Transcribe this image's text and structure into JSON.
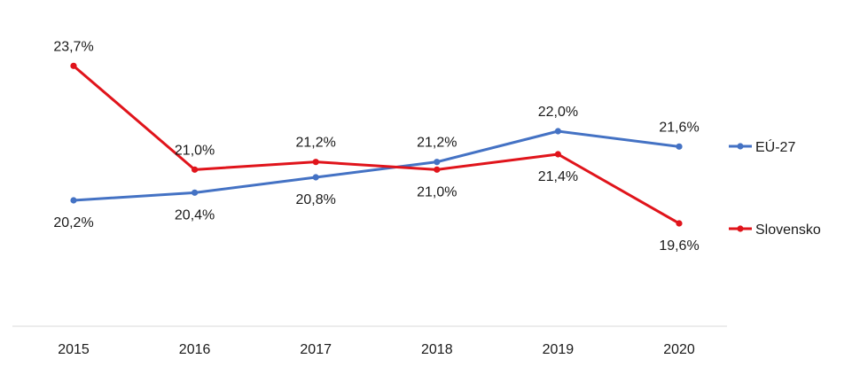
{
  "chart_data": {
    "type": "line",
    "title": "",
    "xlabel": "",
    "ylabel": "",
    "categories": [
      "2015",
      "2016",
      "2017",
      "2018",
      "2019",
      "2020"
    ],
    "ylim": [
      17.5,
      25.0
    ],
    "grid": false,
    "legend_position": "right",
    "series": [
      {
        "name": "EÚ-27",
        "color": "#4472c4",
        "values": [
          20.2,
          20.4,
          20.8,
          21.2,
          22.0,
          21.6
        ],
        "labels": [
          "20,2%",
          "20,4%",
          "20,8%",
          "21,2%",
          "22,0%",
          "21,6%"
        ]
      },
      {
        "name": "Slovensko",
        "color": "#e0141b",
        "values": [
          23.7,
          21.0,
          21.2,
          21.0,
          21.4,
          19.6
        ],
        "labels": [
          "23,7%",
          "21,0%",
          "21,2%",
          "21,0%",
          "21,4%",
          "19,6%"
        ]
      }
    ]
  }
}
